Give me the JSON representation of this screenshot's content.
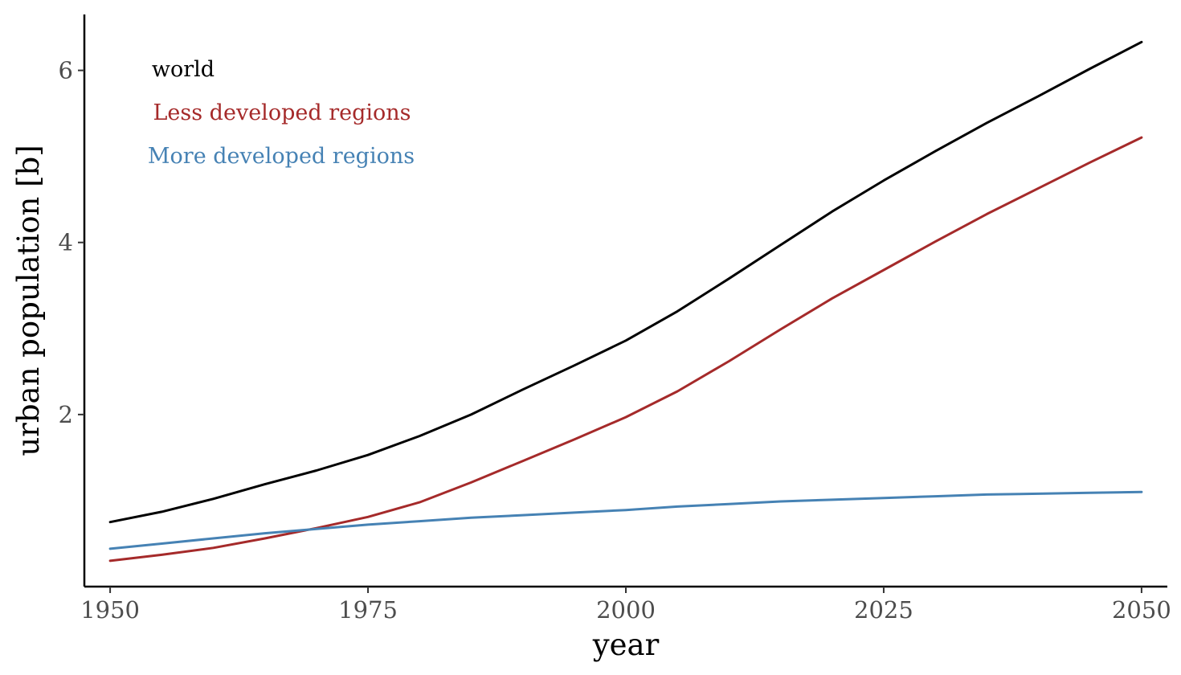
{
  "chart_data": {
    "type": "line",
    "title": "",
    "xlabel": "year",
    "ylabel": "urban population [b]",
    "xlim": [
      1947.5,
      2052.5
    ],
    "ylim": [
      0,
      6.65
    ],
    "x_ticks": [
      1950,
      1975,
      2000,
      2025,
      2050
    ],
    "y_ticks": [
      2,
      4,
      6
    ],
    "x_tick_labels": [
      "1950",
      "1975",
      "2000",
      "2025",
      "2050"
    ],
    "y_tick_labels": [
      "2",
      "4",
      "6"
    ],
    "grid": false,
    "legend": "top-left",
    "x": [
      1950,
      1955,
      1960,
      1965,
      1970,
      1975,
      1980,
      1985,
      1990,
      1995,
      2000,
      2005,
      2010,
      2015,
      2020,
      2025,
      2030,
      2035,
      2040,
      2045,
      2050
    ],
    "series": [
      {
        "name": "world",
        "color": "#000000",
        "values": [
          0.75,
          0.87,
          1.02,
          1.19,
          1.35,
          1.53,
          1.75,
          2.0,
          2.29,
          2.57,
          2.86,
          3.2,
          3.58,
          3.97,
          4.36,
          4.72,
          5.06,
          5.39,
          5.7,
          6.02,
          6.33
        ]
      },
      {
        "name": "Less developed regions",
        "color": "#a52a2a",
        "values": [
          0.3,
          0.37,
          0.45,
          0.56,
          0.68,
          0.81,
          0.98,
          1.21,
          1.46,
          1.71,
          1.97,
          2.27,
          2.62,
          2.99,
          3.35,
          3.68,
          4.01,
          4.33,
          4.63,
          4.93,
          5.22
        ]
      },
      {
        "name": "More developed regions",
        "color": "#4682b4",
        "values": [
          0.44,
          0.5,
          0.56,
          0.62,
          0.67,
          0.72,
          0.76,
          0.8,
          0.83,
          0.86,
          0.89,
          0.93,
          0.96,
          0.99,
          1.01,
          1.03,
          1.05,
          1.07,
          1.08,
          1.09,
          1.1
        ]
      }
    ]
  }
}
